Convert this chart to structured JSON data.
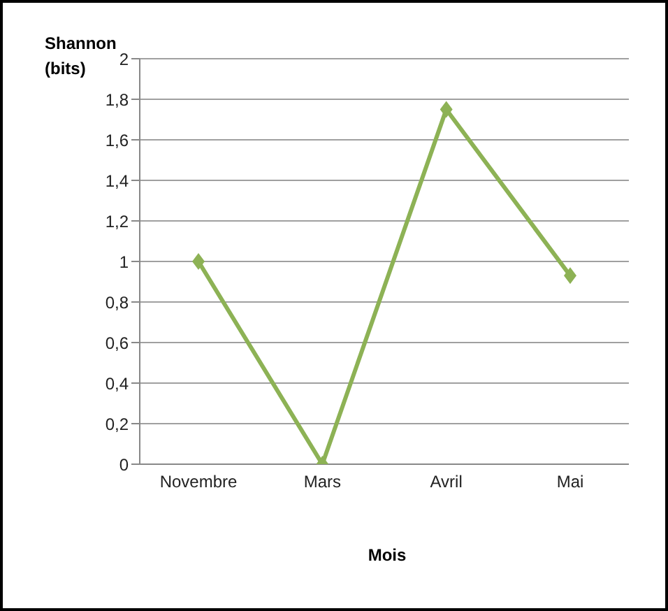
{
  "chart_data": {
    "type": "line",
    "ylabel": "Shannon (bits)",
    "xlabel": "Mois",
    "categories": [
      "Novembre",
      "Mars",
      "Avril",
      "Mai"
    ],
    "series": [
      {
        "color": "#8db255",
        "values": [
          1.0,
          0,
          1.75,
          0.93
        ]
      }
    ],
    "ylim": [
      0,
      2
    ],
    "yticks": [
      0,
      {
        "value": 0.2,
        "label": "0,2"
      },
      {
        "value": 0.4,
        "label": "0,4"
      },
      {
        "value": 0.6,
        "label": "0,6"
      },
      {
        "value": 0.8,
        "label": "0,8"
      },
      1,
      {
        "value": 1.2,
        "label": "1,2"
      },
      {
        "value": 1.4,
        "label": "1,4"
      },
      {
        "value": 1.6,
        "label": "1,6"
      },
      {
        "value": 1.8,
        "label": "1,8"
      },
      2
    ],
    "grid": "y",
    "legend": false,
    "marker": "diamond",
    "line_style": "solid"
  }
}
